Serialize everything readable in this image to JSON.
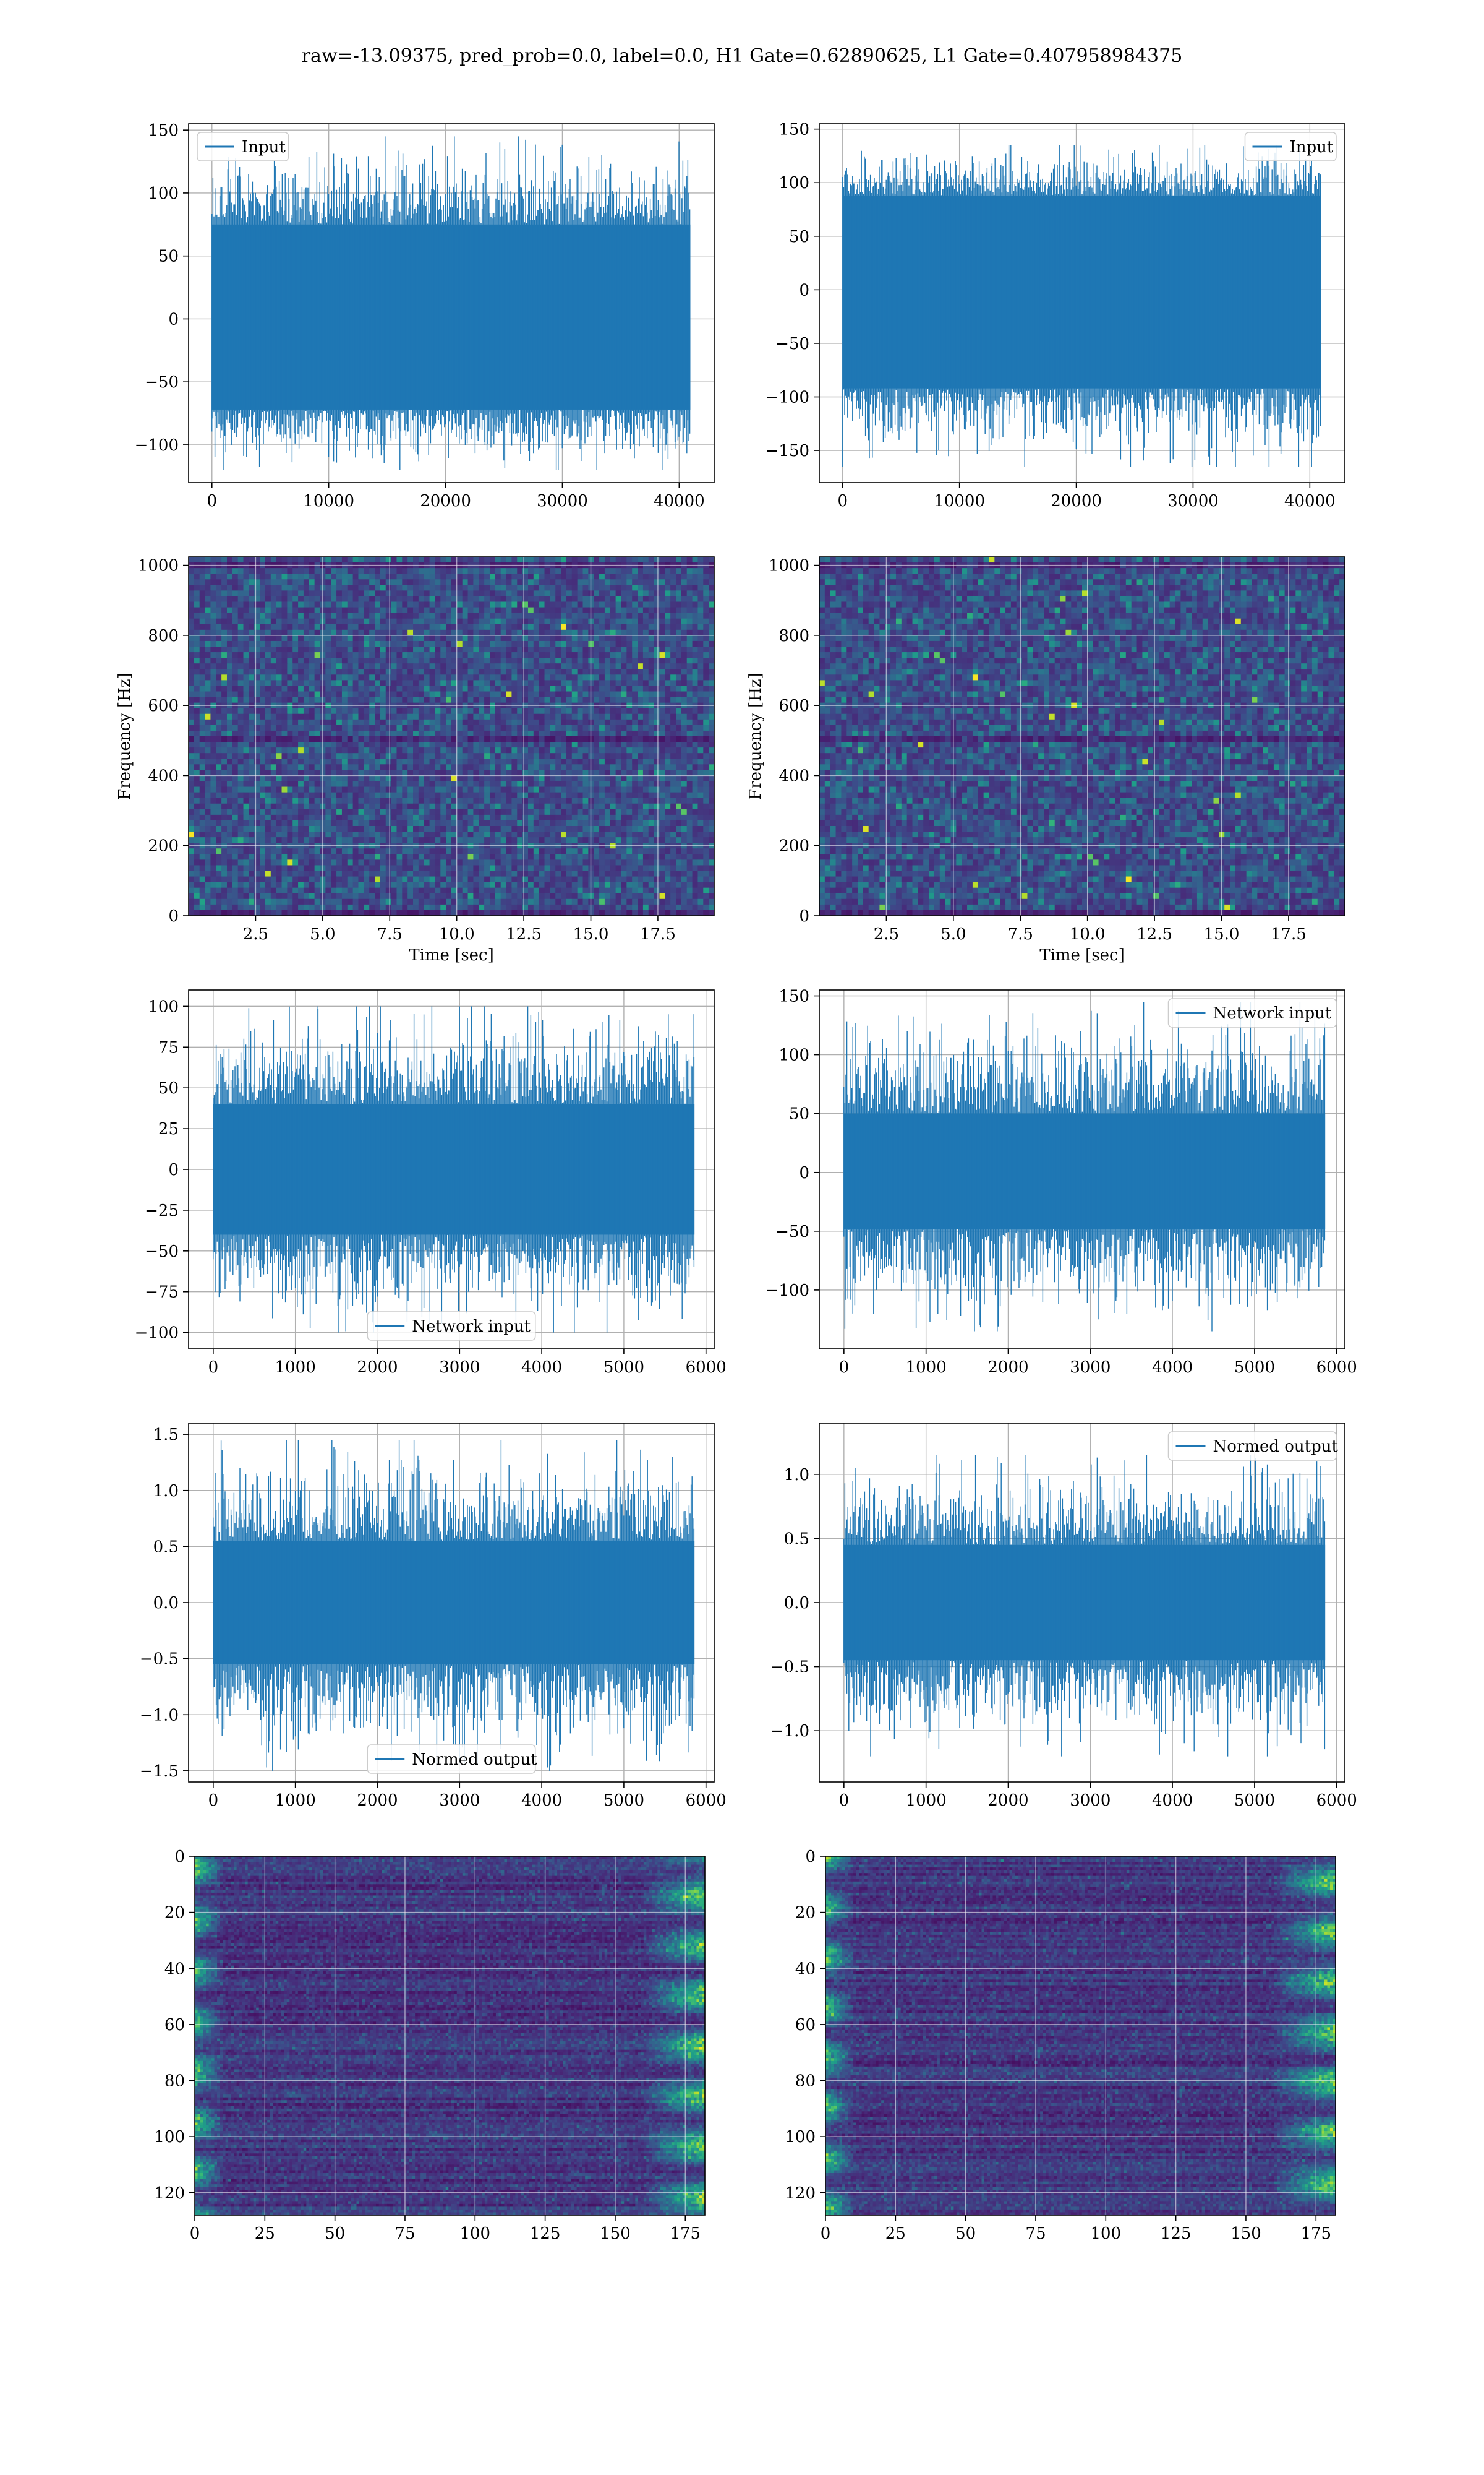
{
  "figure": {
    "suptitle": "raw=-13.09375, pred_prob=0.0, label=0.0, H1 Gate=0.62890625, L1 Gate=0.407958984375"
  },
  "colors": {
    "line": "#1f77b4",
    "grid": "#b0b0b0",
    "viridis": [
      "#440154",
      "#482878",
      "#3e4989",
      "#31688e",
      "#26828e",
      "#1f9e89",
      "#35b779",
      "#6ece58",
      "#b5de2b",
      "#fde725"
    ]
  },
  "chart_data": [
    {
      "id": "h1_input",
      "type": "line",
      "series": [
        {
          "name": "Input",
          "stats": {
            "n": 40960,
            "range": [
              -120,
              145
            ],
            "core": [
              -72,
              75
            ]
          }
        }
      ],
      "xlim": [
        -2000,
        43000
      ],
      "ylim": [
        -130,
        155
      ],
      "xticks": [
        0,
        10000,
        20000,
        30000,
        40000
      ],
      "yticks": [
        -100,
        -50,
        0,
        50,
        100,
        150
      ],
      "legend": "upper left",
      "grid": true,
      "xlabel": "",
      "ylabel": ""
    },
    {
      "id": "l1_input",
      "type": "line",
      "series": [
        {
          "name": "Input",
          "stats": {
            "n": 40960,
            "range": [
              -165,
              135
            ],
            "core": [
              -92,
              88
            ]
          }
        }
      ],
      "xlim": [
        -2000,
        43000
      ],
      "ylim": [
        -180,
        155
      ],
      "xticks": [
        0,
        10000,
        20000,
        30000,
        40000
      ],
      "yticks": [
        -150,
        -100,
        -50,
        0,
        50,
        100,
        150
      ],
      "legend": "upper right",
      "grid": true,
      "xlabel": "",
      "ylabel": ""
    },
    {
      "id": "h1_spectrogram",
      "type": "heatmap",
      "xlim": [
        0,
        19.6
      ],
      "ylim": [
        0,
        1024
      ],
      "xticks": [
        2.5,
        5.0,
        7.5,
        10.0,
        12.5,
        15.0,
        17.5
      ],
      "yticks": [
        0,
        200,
        400,
        600,
        800,
        1000
      ],
      "xlabel": "Time [sec]",
      "ylabel": "Frequency [Hz]",
      "grid": true
    },
    {
      "id": "l1_spectrogram",
      "type": "heatmap",
      "xlim": [
        0,
        19.6
      ],
      "ylim": [
        0,
        1024
      ],
      "xticks": [
        2.5,
        5.0,
        7.5,
        10.0,
        12.5,
        15.0,
        17.5
      ],
      "yticks": [
        0,
        200,
        400,
        600,
        800,
        1000
      ],
      "xlabel": "Time [sec]",
      "ylabel": "Frequency [Hz]",
      "grid": true
    },
    {
      "id": "h1_network_input",
      "type": "line",
      "series": [
        {
          "name": "Network input",
          "stats": {
            "n": 5860,
            "range": [
              -100,
              100
            ],
            "core": [
              -40,
              40
            ]
          }
        }
      ],
      "xlim": [
        -300,
        6100
      ],
      "ylim": [
        -110,
        110
      ],
      "xticks": [
        0,
        1000,
        2000,
        3000,
        4000,
        5000,
        6000
      ],
      "yticks": [
        -100,
        -75,
        -50,
        -25,
        0,
        25,
        50,
        75,
        100
      ],
      "legend": "lower center",
      "grid": true,
      "xlabel": "",
      "ylabel": ""
    },
    {
      "id": "l1_network_input",
      "type": "line",
      "series": [
        {
          "name": "Network input",
          "stats": {
            "n": 5860,
            "range": [
              -135,
              145
            ],
            "core": [
              -48,
              50
            ]
          }
        }
      ],
      "xlim": [
        -300,
        6100
      ],
      "ylim": [
        -150,
        155
      ],
      "xticks": [
        0,
        1000,
        2000,
        3000,
        4000,
        5000,
        6000
      ],
      "yticks": [
        -100,
        -50,
        0,
        50,
        100,
        150
      ],
      "legend": "upper right",
      "grid": true,
      "xlabel": "",
      "ylabel": ""
    },
    {
      "id": "h1_normed_output",
      "type": "line",
      "series": [
        {
          "name": "Normed output",
          "stats": {
            "n": 5860,
            "range": [
              -1.5,
              1.45
            ],
            "core": [
              -0.55,
              0.55
            ]
          }
        }
      ],
      "xlim": [
        -300,
        6100
      ],
      "ylim": [
        -1.6,
        1.6
      ],
      "xticks": [
        0,
        1000,
        2000,
        3000,
        4000,
        5000,
        6000
      ],
      "yticks": [
        -1.5,
        -1.0,
        -0.5,
        0.0,
        0.5,
        1.0,
        1.5
      ],
      "legend": "lower center",
      "grid": true,
      "xlabel": "",
      "ylabel": ""
    },
    {
      "id": "l1_normed_output",
      "type": "line",
      "series": [
        {
          "name": "Normed output",
          "stats": {
            "n": 5860,
            "range": [
              -1.2,
              1.15
            ],
            "core": [
              -0.45,
              0.45
            ]
          }
        }
      ],
      "xlim": [
        -300,
        6100
      ],
      "ylim": [
        -1.4,
        1.4
      ],
      "xticks": [
        0,
        1000,
        2000,
        3000,
        4000,
        5000,
        6000
      ],
      "yticks": [
        -1.0,
        -0.5,
        0.0,
        0.5,
        1.0
      ],
      "legend": "upper right",
      "grid": true,
      "xlabel": "",
      "ylabel": ""
    },
    {
      "id": "h1_feature_map",
      "type": "heatmap",
      "rows": 128,
      "cols": 183,
      "xlim": [
        0,
        182
      ],
      "ylim": [
        128,
        0
      ],
      "xticks": [
        0,
        25,
        50,
        75,
        100,
        125,
        150,
        175
      ],
      "yticks": [
        0,
        20,
        40,
        60,
        80,
        100,
        120
      ],
      "grid": true,
      "xlabel": "",
      "ylabel": ""
    },
    {
      "id": "l1_feature_map",
      "type": "heatmap",
      "rows": 128,
      "cols": 183,
      "xlim": [
        0,
        182
      ],
      "ylim": [
        128,
        0
      ],
      "xticks": [
        0,
        25,
        50,
        75,
        100,
        125,
        150,
        175
      ],
      "yticks": [
        0,
        20,
        40,
        60,
        80,
        100,
        120
      ],
      "grid": true,
      "xlabel": "",
      "ylabel": ""
    }
  ]
}
